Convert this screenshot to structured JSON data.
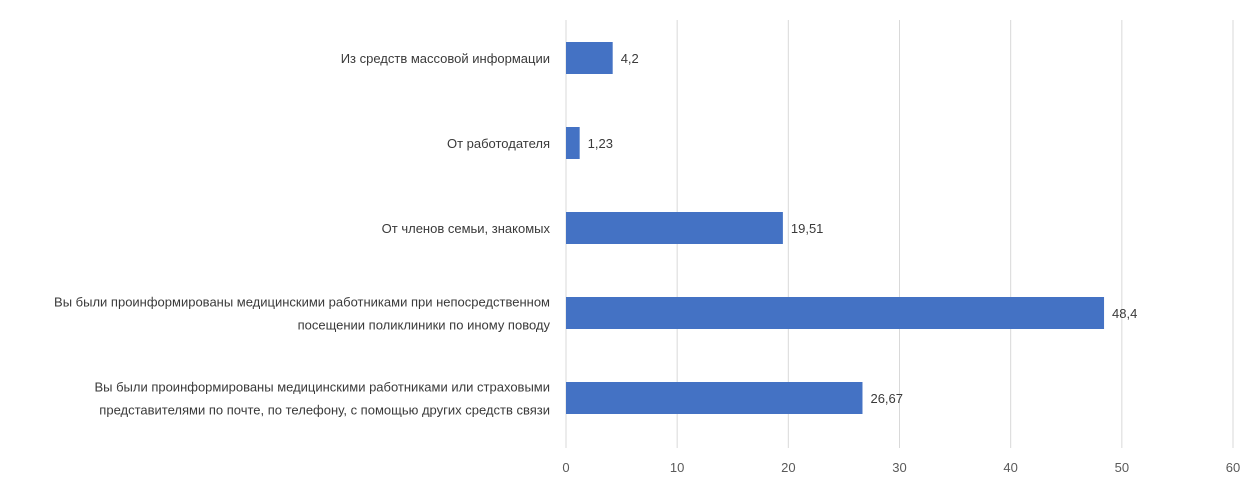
{
  "chart_data": {
    "type": "bar",
    "orientation": "horizontal",
    "categories": [
      [
        "Из средств массовой информации"
      ],
      [
        "От работодателя"
      ],
      [
        "От членов семьи, знакомых"
      ],
      [
        "Вы были проинформированы медицинскими работниками при непосредственном",
        "посещении поликлиники по иному поводу"
      ],
      [
        "Вы были проинформированы медицинскими работниками или страховыми",
        "представителями по почте, по телефону, с помощью других средств связи"
      ]
    ],
    "values": [
      4.2,
      1.23,
      19.51,
      48.4,
      26.67
    ],
    "value_labels": [
      "4,2",
      "1,23",
      "19,51",
      "48,4",
      "26,67"
    ],
    "xlim": [
      0,
      60
    ],
    "xticks": [
      0,
      10,
      20,
      30,
      40,
      50,
      60
    ],
    "grid": "vertical",
    "bar_color": "#4472c4",
    "grid_color": "#d9d9d9"
  }
}
